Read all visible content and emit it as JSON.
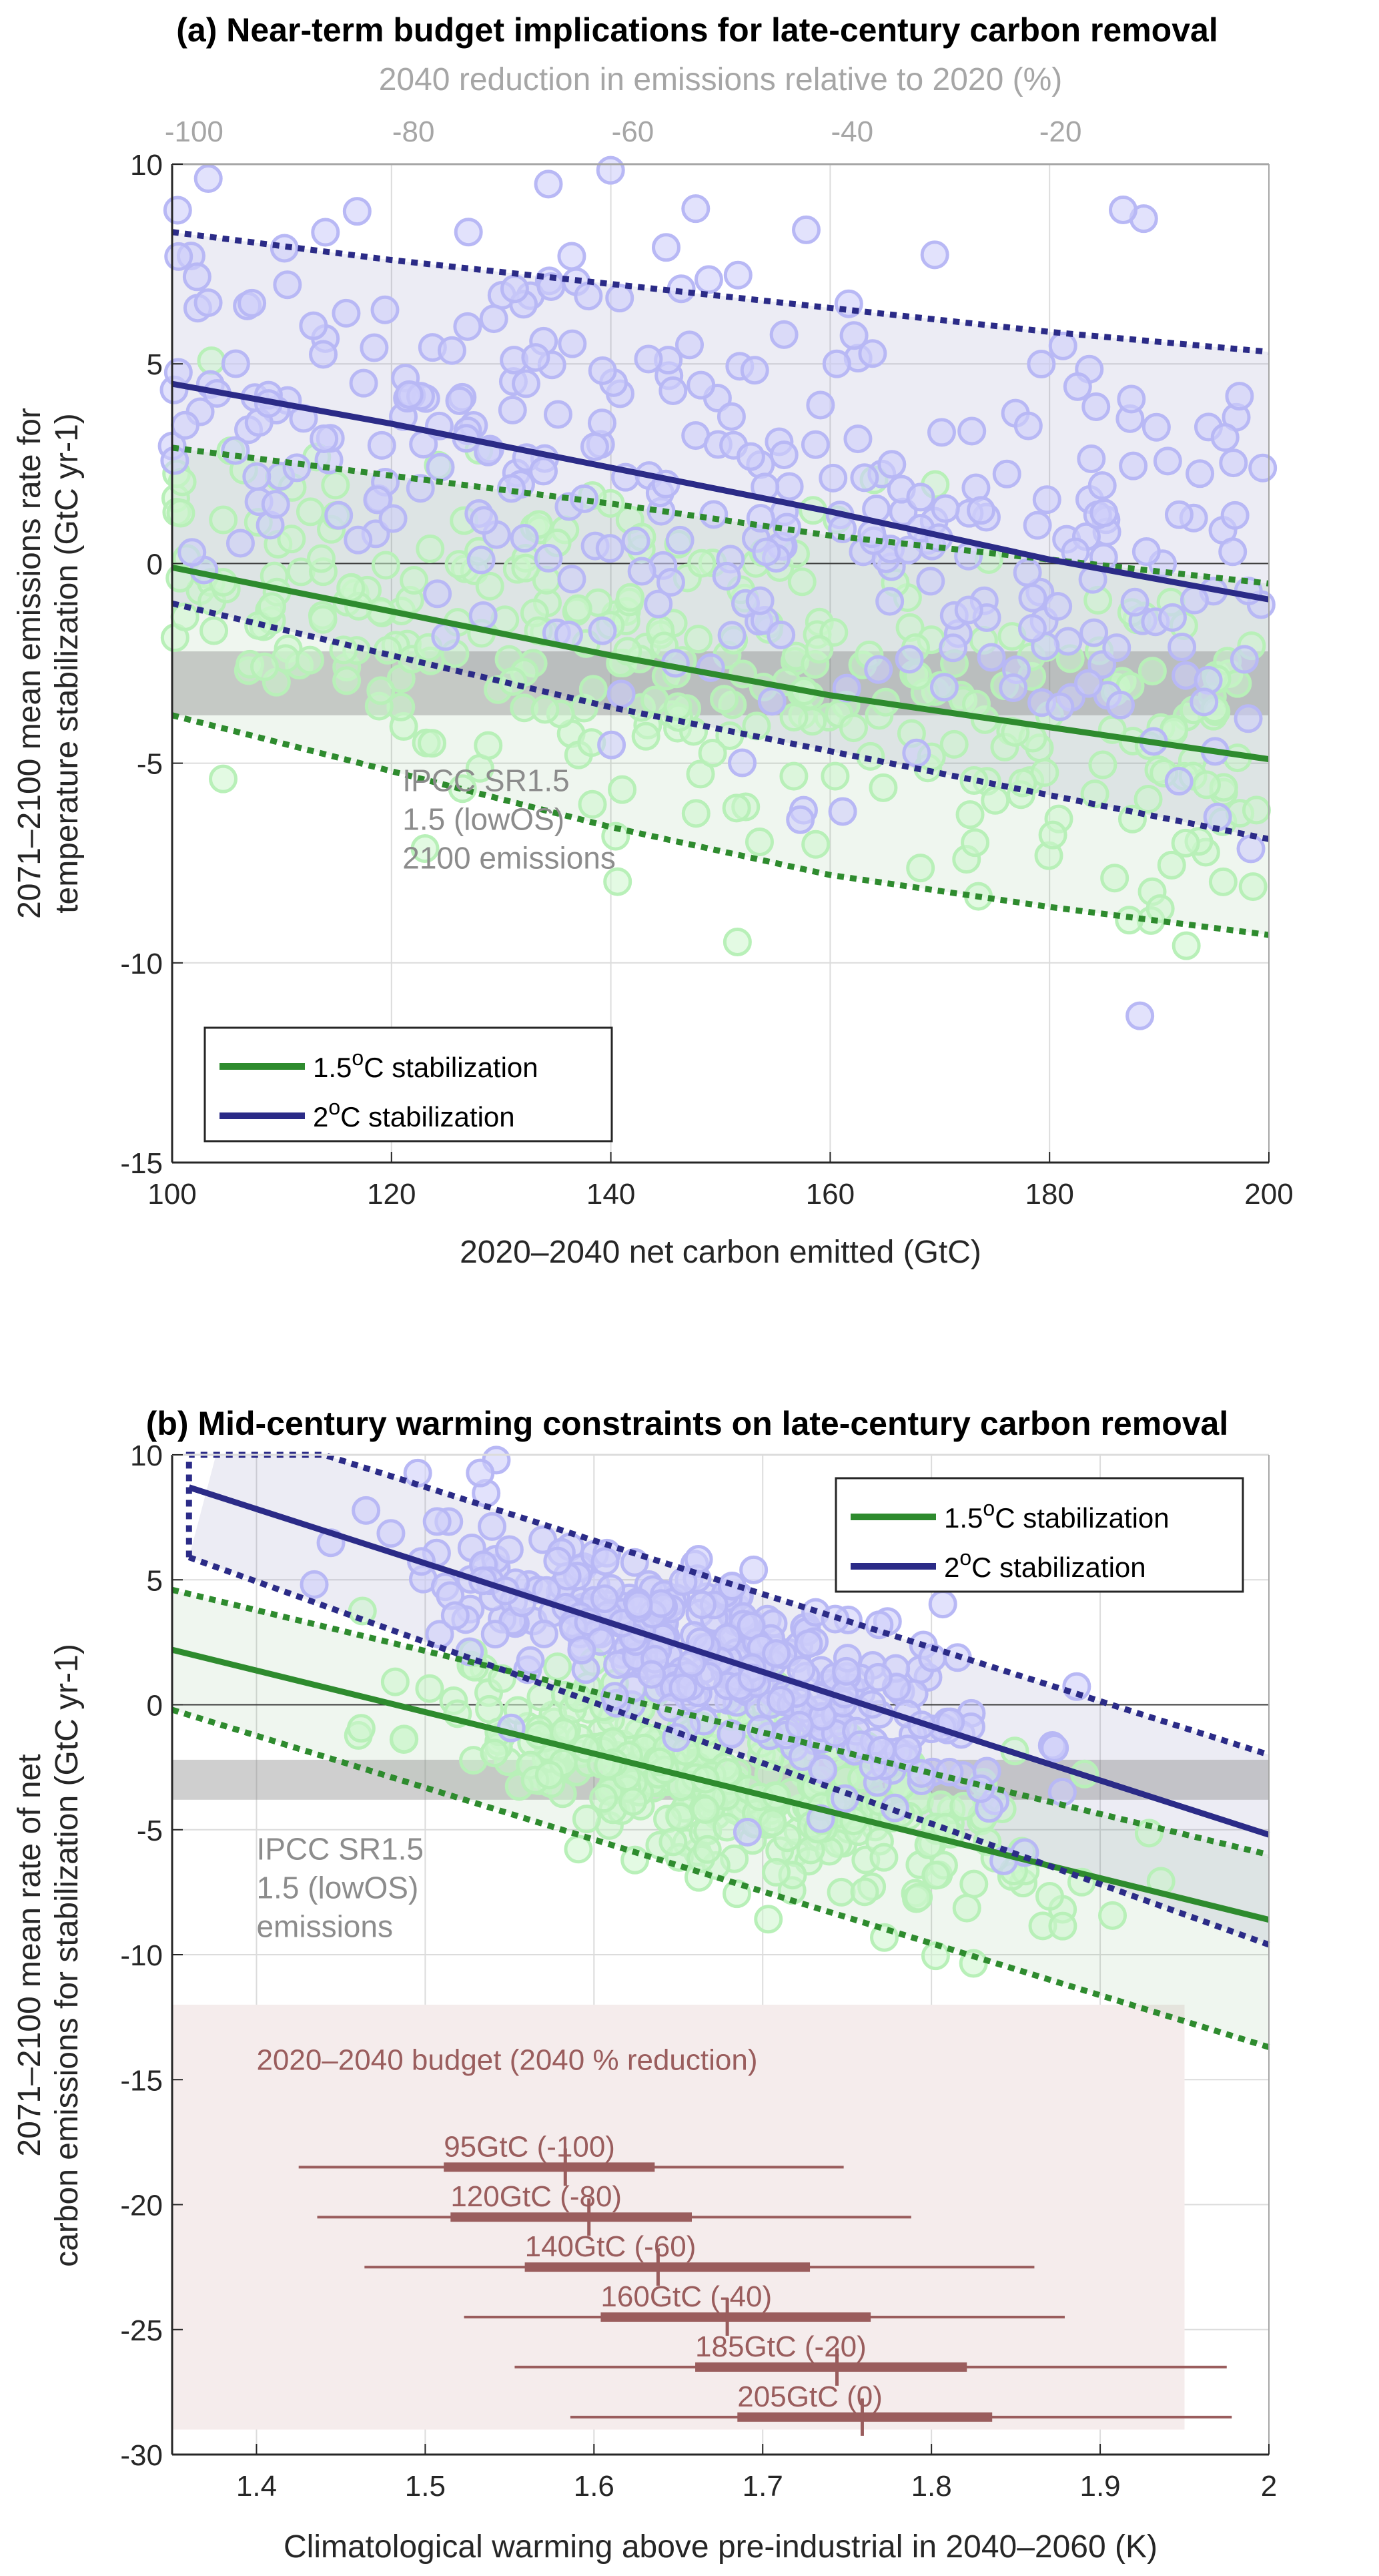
{
  "chart_data": [
    {
      "type": "scatter",
      "title": "(a) Near-term budget implications for late-century carbon removal",
      "xlabel": "2020–2040 net carbon emitted (GtC)",
      "ylabel_lines": [
        "2071–2100 mean emissions rate for",
        "temperature stabilization (GtC yr-1)"
      ],
      "xlim": [
        100,
        200
      ],
      "ylim": [
        -15,
        10
      ],
      "xticks": [
        100,
        120,
        140,
        160,
        180,
        200
      ],
      "yticks": [
        -15,
        -10,
        -5,
        0,
        5,
        10
      ],
      "top_axis": {
        "label": "2040 reduction in emissions relative to 2020 (%)",
        "ticks": [
          {
            "label": "-100",
            "x_data": 102
          },
          {
            "label": "-80",
            "x_data": 122
          },
          {
            "label": "-60",
            "x_data": 142
          },
          {
            "label": "-40",
            "x_data": 162
          },
          {
            "label": "-20",
            "x_data": 181
          }
        ]
      },
      "grid": true,
      "ipcc_band": {
        "y_range": [
          -3.8,
          -2.2
        ],
        "label_lines": [
          "IPCC SR1.5",
          "1.5 (lowOS)",
          "2100 emissions"
        ],
        "label_at": [
          121,
          -5.7
        ]
      },
      "series": [
        {
          "name": "1.5°C stabilization",
          "color": "#2e8b2e",
          "point_color": "#ccf5cc",
          "line": {
            "x": [
              100,
              120,
              140,
              160,
              180,
              200
            ],
            "y": [
              -0.1,
              -1.2,
              -2.3,
              -3.3,
              -4.1,
              -4.9
            ]
          },
          "upper": {
            "x": [
              100,
              120,
              140,
              160,
              180,
              200
            ],
            "y": [
              2.9,
              2.2,
              1.5,
              0.7,
              0.1,
              -0.5
            ]
          },
          "lower": {
            "x": [
              100,
              120,
              140,
              160,
              180,
              200
            ],
            "y": [
              -3.8,
              -5.2,
              -6.6,
              -7.8,
              -8.6,
              -9.3
            ]
          }
        },
        {
          "name": "2°C stabilization",
          "color": "#2b2b87",
          "point_color": "#d6d6fa",
          "line": {
            "x": [
              100,
              120,
              140,
              160,
              180,
              200
            ],
            "y": [
              4.5,
              3.5,
              2.4,
              1.3,
              0.1,
              -0.9
            ]
          },
          "upper": {
            "x": [
              100,
              120,
              140,
              160,
              180,
              200
            ],
            "y": [
              8.3,
              7.6,
              7.0,
              6.4,
              5.8,
              5.3
            ]
          },
          "lower": {
            "x": [
              100,
              120,
              140,
              160,
              180,
              200
            ],
            "y": [
              -1.0,
              -2.3,
              -3.6,
              -4.7,
              -5.8,
              -6.9
            ]
          }
        }
      ],
      "legend": {
        "position": "bottom-left",
        "entries": [
          "1.5°C stabilization",
          "2°C stabilization"
        ]
      },
      "scatter_note": "~600 simulated ensemble members per series, scattered across the full axis range"
    },
    {
      "type": "scatter",
      "title": "(b) Mid-century warming constraints on late-century carbon removal",
      "xlabel": "Climatological warming above pre-industrial in 2040–2060 (K)",
      "ylabel_lines": [
        "2071–2100 mean rate of net",
        "carbon emissions for stabilization (GtC yr-1)"
      ],
      "xlim": [
        1.35,
        2.0
      ],
      "ylim": [
        -30,
        10
      ],
      "xticks": [
        1.4,
        1.5,
        1.6,
        1.7,
        1.8,
        1.9,
        2.0
      ],
      "xtick_labels": [
        "1.4",
        "1.5",
        "1.6",
        "1.7",
        "1.8",
        "1.9",
        "2"
      ],
      "yticks": [
        -30,
        -25,
        -20,
        -15,
        -10,
        -5,
        0,
        5,
        10
      ],
      "grid": true,
      "ipcc_band": {
        "y_range": [
          -3.8,
          -2.2
        ],
        "label_lines": [
          "IPCC SR1.5",
          "1.5 (lowOS)",
          "emissions"
        ],
        "label_at": [
          1.4,
          -6.2
        ]
      },
      "series": [
        {
          "name": "1.5°C stabilization",
          "color": "#2e8b2e",
          "point_color": "#ccf5cc",
          "line": {
            "x": [
              1.35,
              2.0
            ],
            "y": [
              2.2,
              -8.6
            ]
          },
          "upper": {
            "x": [
              1.35,
              2.0
            ],
            "y": [
              4.6,
              -6.0
            ]
          },
          "lower": {
            "x": [
              1.35,
              2.0
            ],
            "y": [
              -0.2,
              -13.7
            ]
          }
        },
        {
          "name": "2°C stabilization",
          "color": "#2b2b87",
          "point_color": "#d6d6fa",
          "line": {
            "x": [
              1.36,
              2.0
            ],
            "y": [
              8.7,
              -5.2
            ]
          },
          "upper": {
            "x": [
              1.36,
              1.36,
              1.44,
              2.0
            ],
            "y": [
              5.9,
              10,
              10,
              -2.0
            ]
          },
          "lower": {
            "x": [
              1.36,
              2.0
            ],
            "y": [
              5.9,
              -9.6
            ]
          }
        }
      ],
      "legend": {
        "position": "top-right",
        "entries": [
          "1.5°C stabilization",
          "2°C stabilization"
        ]
      },
      "budget_panel": {
        "title": "2020–2040 budget (2040 % reduction)",
        "y_range": [
          -29,
          -12
        ],
        "x_range": [
          1.35,
          1.95
        ],
        "color": "#9a5d5d",
        "rows": [
          {
            "label": "95GtC (-100)",
            "y": -18.5,
            "whisker": [
              1.425,
              1.748
            ],
            "box": [
              1.511,
              1.636
            ],
            "median": 1.583
          },
          {
            "label": "120GtC (-80)",
            "y": -20.5,
            "whisker": [
              1.436,
              1.788
            ],
            "box": [
              1.515,
              1.658
            ],
            "median": 1.597
          },
          {
            "label": "140GtC (-60)",
            "y": -22.5,
            "whisker": [
              1.464,
              1.861
            ],
            "box": [
              1.559,
              1.728
            ],
            "median": 1.638
          },
          {
            "label": "160GtC (-40)",
            "y": -24.5,
            "whisker": [
              1.523,
              1.879
            ],
            "box": [
              1.604,
              1.764
            ],
            "median": 1.679
          },
          {
            "label": "185GtC (-20)",
            "y": -26.5,
            "whisker": [
              1.553,
              1.975
            ],
            "box": [
              1.66,
              1.821
            ],
            "median": 1.744
          },
          {
            "label": "205GtC (0)",
            "y": -28.5,
            "whisker": [
              1.586,
              1.978
            ],
            "box": [
              1.685,
              1.836
            ],
            "median": 1.759
          }
        ]
      }
    }
  ]
}
